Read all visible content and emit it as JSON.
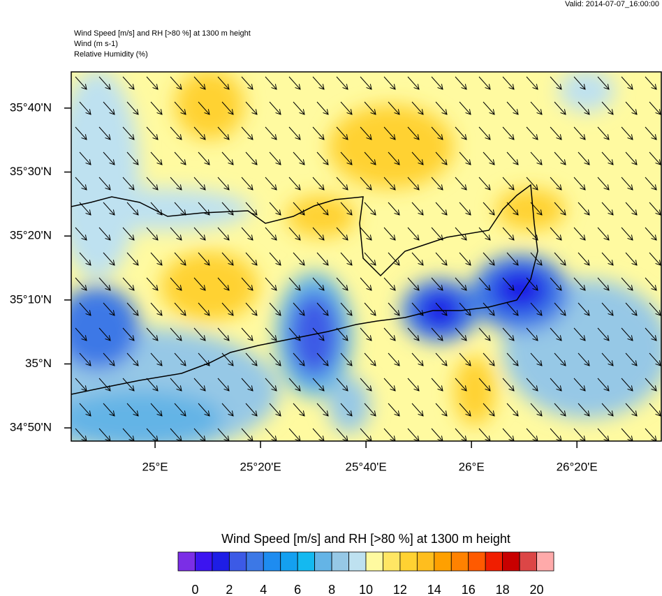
{
  "valid": "Valid: 2014-07-07_16:00:00",
  "header": {
    "lines": [
      "Wind Speed [m/s] and RH [>80 %] at 1300 m height",
      "Wind   (m s-1)",
      "Relative Humidity   (%)"
    ]
  },
  "map": {
    "xlim": [
      24.735,
      26.6
    ],
    "ylim": [
      34.799,
      35.761
    ],
    "xticks": [
      {
        "value": 25,
        "label": "25°E"
      },
      {
        "value": 25.333333,
        "label": "25°20'E"
      },
      {
        "value": 25.666667,
        "label": "25°40'E"
      },
      {
        "value": 26,
        "label": "26°E"
      },
      {
        "value": 26.333333,
        "label": "26°20'E"
      }
    ],
    "yticks": [
      {
        "value": 34.833333,
        "label": "34°50'N"
      },
      {
        "value": 35,
        "label": "35°N"
      },
      {
        "value": 35.166667,
        "label": "35°10'N"
      },
      {
        "value": 35.333333,
        "label": "35°20'N"
      },
      {
        "value": 35.5,
        "label": "35°30'N"
      },
      {
        "value": 35.666667,
        "label": "35°40'N"
      }
    ]
  },
  "colorbar": {
    "title": "Wind Speed [m/s] and RH [>80 %] at 1300 m height",
    "colors": [
      "#7b2ee6",
      "#3c14f0",
      "#1e1ee6",
      "#3c5ae6",
      "#3c78e6",
      "#1e8cf0",
      "#14a0f0",
      "#14b9f0",
      "#64b4e6",
      "#96c8e6",
      "#bee1f0",
      "#fffaa0",
      "#ffe664",
      "#ffd232",
      "#ffbe1e",
      "#ffa000",
      "#ff8200",
      "#ff5a00",
      "#f01e00",
      "#c80000",
      "#dc4646",
      "#ffaaaa"
    ],
    "levels": [
      0,
      1,
      2,
      3,
      4,
      5,
      6,
      7,
      8,
      9,
      10,
      11,
      12,
      13,
      14,
      15,
      16,
      17,
      18,
      19,
      20
    ],
    "ticks": [
      0,
      2,
      4,
      6,
      8,
      10,
      12,
      14,
      16,
      18,
      20
    ]
  }
}
